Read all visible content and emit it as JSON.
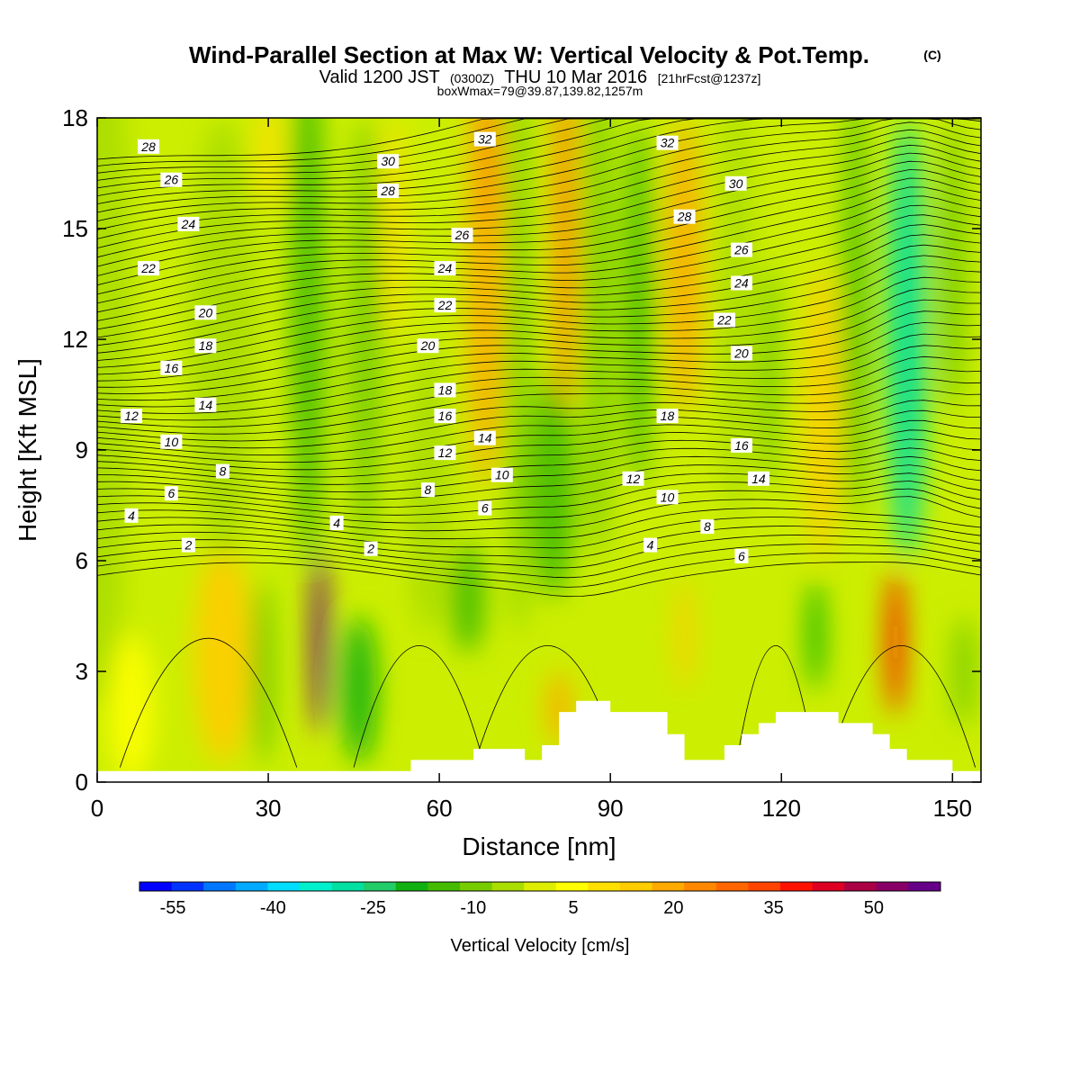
{
  "header": {
    "title": "Wind-Parallel Section at Max W: Vertical Velocity & Pot.Temp.",
    "copyright": "(C)",
    "valid_prefix": "Valid 1200 JST",
    "valid_utc": "(0300Z)",
    "valid_date": "THU 10 Mar 2016",
    "forecast": "[21hrFcst@1237z]",
    "boxwmax": "boxWmax=79@39.87,139.82,1257m"
  },
  "chart_data": {
    "type": "heatmap",
    "title": "Wind-Parallel Section at Max W: Vertical Velocity & Pot.Temp.",
    "xlabel": "Distance [nm]",
    "ylabel": "Height [Kft MSL]",
    "xlim": [
      0,
      155
    ],
    "ylim": [
      0,
      18
    ],
    "xticks": [
      0,
      30,
      60,
      90,
      120,
      150
    ],
    "yticks": [
      0,
      3,
      6,
      9,
      12,
      15,
      18
    ],
    "colorbar": {
      "label": "Vertical Velocity [cm/s]",
      "ticks": [
        -55,
        -40,
        -25,
        -10,
        5,
        20,
        35,
        50
      ],
      "min": -60,
      "max": 60,
      "colors": [
        "#0000ff",
        "#0033ff",
        "#0077ff",
        "#00aaff",
        "#00ddff",
        "#00f0cc",
        "#00e0a0",
        "#22cc66",
        "#11b011",
        "#44bb00",
        "#77cc00",
        "#aadd00",
        "#ddee00",
        "#ffff00",
        "#ffe000",
        "#ffcc00",
        "#ffaa00",
        "#ff8800",
        "#ff6600",
        "#ff4400",
        "#ff1100",
        "#dd0022",
        "#aa0044",
        "#880066",
        "#660088"
      ]
    },
    "vertical_velocity_cells": [
      {
        "x_center": 0,
        "w_nm": 12,
        "y_center": 12,
        "h_kft": 20,
        "w_cms": -6
      },
      {
        "x_center": 6,
        "w_nm": 8,
        "y_center": 2,
        "h_kft": 4,
        "w_cms": 4
      },
      {
        "x_center": 22,
        "w_nm": 10,
        "y_center": 3.5,
        "h_kft": 6,
        "w_cms": 12
      },
      {
        "x_center": 22,
        "w_nm": 12,
        "y_center": 12,
        "h_kft": 12,
        "w_cms": -5
      },
      {
        "x_center": 29,
        "w_nm": 3,
        "y_center": 3,
        "h_kft": 5,
        "w_cms": -16
      },
      {
        "x_center": 30,
        "w_nm": 4,
        "y_center": 17,
        "h_kft": 3,
        "w_cms": 10
      },
      {
        "x_center": 37,
        "w_nm": 6,
        "y_center": 13,
        "h_kft": 14,
        "w_cms": -16
      },
      {
        "x_center": 39,
        "w_nm": 3,
        "y_center": 3.8,
        "h_kft": 5,
        "w_cms": 58
      },
      {
        "x_center": 46,
        "w_nm": 6,
        "y_center": 2.5,
        "h_kft": 4,
        "w_cms": -18
      },
      {
        "x_center": 47,
        "w_nm": 6,
        "y_center": 12,
        "h_kft": 12,
        "w_cms": -8
      },
      {
        "x_center": 52,
        "w_nm": 4,
        "y_center": 15,
        "h_kft": 6,
        "w_cms": 8
      },
      {
        "x_center": 58,
        "w_nm": 8,
        "y_center": 8,
        "h_kft": 8,
        "w_cms": -6
      },
      {
        "x_center": 65,
        "w_nm": 6,
        "y_center": 5,
        "h_kft": 3,
        "w_cms": -16
      },
      {
        "x_center": 68,
        "w_nm": 6,
        "y_center": 14,
        "h_kft": 12,
        "w_cms": 18
      },
      {
        "x_center": 69,
        "w_nm": 3,
        "y_center": 17,
        "h_kft": 4,
        "w_cms": 26
      },
      {
        "x_center": 74,
        "w_nm": 4,
        "y_center": 12,
        "h_kft": 16,
        "w_cms": -10
      },
      {
        "x_center": 80,
        "w_nm": 8,
        "y_center": 8,
        "h_kft": 6,
        "w_cms": -14
      },
      {
        "x_center": 81,
        "w_nm": 4,
        "y_center": 2,
        "h_kft": 2,
        "w_cms": 20
      },
      {
        "x_center": 82,
        "w_nm": 4,
        "y_center": 15,
        "h_kft": 10,
        "w_cms": 26
      },
      {
        "x_center": 88,
        "w_nm": 5,
        "y_center": 13,
        "h_kft": 14,
        "w_cms": -8
      },
      {
        "x_center": 95,
        "w_nm": 5,
        "y_center": 13,
        "h_kft": 10,
        "w_cms": -16
      },
      {
        "x_center": 103,
        "w_nm": 6,
        "y_center": 14,
        "h_kft": 8,
        "w_cms": 20
      },
      {
        "x_center": 103,
        "w_nm": 3,
        "y_center": 4,
        "h_kft": 3,
        "w_cms": 12
      },
      {
        "x_center": 112,
        "w_nm": 6,
        "y_center": 13,
        "h_kft": 12,
        "w_cms": -6
      },
      {
        "x_center": 118,
        "w_nm": 4,
        "y_center": 11,
        "h_kft": 6,
        "w_cms": -12
      },
      {
        "x_center": 126,
        "w_nm": 3,
        "y_center": 4,
        "h_kft": 3,
        "w_cms": -20
      },
      {
        "x_center": 127,
        "w_nm": 6,
        "y_center": 10,
        "h_kft": 8,
        "w_cms": 14
      },
      {
        "x_center": 133,
        "w_nm": 4,
        "y_center": 13,
        "h_kft": 12,
        "w_cms": -14
      },
      {
        "x_center": 140,
        "w_nm": 3,
        "y_center": 3.8,
        "h_kft": 4,
        "w_cms": 36
      },
      {
        "x_center": 142,
        "w_nm": 7,
        "y_center": 12,
        "h_kft": 12,
        "w_cms": -28
      },
      {
        "x_center": 150,
        "w_nm": 5,
        "y_center": 14,
        "h_kft": 8,
        "w_cms": -8
      },
      {
        "x_center": 152,
        "w_nm": 4,
        "y_center": 3,
        "h_kft": 3,
        "w_cms": -12
      }
    ],
    "terrain": [
      [
        0,
        0.3
      ],
      [
        55,
        0.3
      ],
      [
        55,
        0.6
      ],
      [
        66,
        0.6
      ],
      [
        66,
        0.9
      ],
      [
        75,
        0.9
      ],
      [
        75,
        0.6
      ],
      [
        78,
        0.6
      ],
      [
        78,
        1.0
      ],
      [
        81,
        1.0
      ],
      [
        81,
        1.9
      ],
      [
        84,
        1.9
      ],
      [
        84,
        2.2
      ],
      [
        90,
        2.2
      ],
      [
        90,
        1.9
      ],
      [
        100,
        1.9
      ],
      [
        100,
        1.3
      ],
      [
        103,
        1.3
      ],
      [
        103,
        0.6
      ],
      [
        110,
        0.6
      ],
      [
        110,
        1.0
      ],
      [
        113,
        1.0
      ],
      [
        113,
        1.3
      ],
      [
        116,
        1.3
      ],
      [
        116,
        1.6
      ],
      [
        119,
        1.6
      ],
      [
        119,
        1.9
      ],
      [
        130,
        1.9
      ],
      [
        130,
        1.6
      ],
      [
        136,
        1.6
      ],
      [
        136,
        1.3
      ],
      [
        139,
        1.3
      ],
      [
        139,
        0.9
      ],
      [
        142,
        0.9
      ],
      [
        142,
        0.6
      ],
      [
        150,
        0.6
      ],
      [
        150,
        0.3
      ],
      [
        155,
        0.3
      ]
    ],
    "potential_temperature_labels": [
      {
        "value": "28",
        "x": 9,
        "y": 17.2
      },
      {
        "value": "26",
        "x": 13,
        "y": 16.3
      },
      {
        "value": "24",
        "x": 16,
        "y": 15.1
      },
      {
        "value": "22",
        "x": 9,
        "y": 13.9
      },
      {
        "value": "20",
        "x": 19,
        "y": 12.7
      },
      {
        "value": "18",
        "x": 19,
        "y": 11.8
      },
      {
        "value": "16",
        "x": 13,
        "y": 11.2
      },
      {
        "value": "14",
        "x": 19,
        "y": 10.2
      },
      {
        "value": "12",
        "x": 6,
        "y": 9.9
      },
      {
        "value": "10",
        "x": 13,
        "y": 9.2
      },
      {
        "value": "8",
        "x": 22,
        "y": 8.4
      },
      {
        "value": "6",
        "x": 13,
        "y": 7.8
      },
      {
        "value": "4",
        "x": 6,
        "y": 7.2
      },
      {
        "value": "2",
        "x": 16,
        "y": 6.4
      },
      {
        "value": "30",
        "x": 51,
        "y": 16.8
      },
      {
        "value": "28",
        "x": 51,
        "y": 16.0
      },
      {
        "value": "26",
        "x": 64,
        "y": 14.8
      },
      {
        "value": "24",
        "x": 61,
        "y": 13.9
      },
      {
        "value": "22",
        "x": 61,
        "y": 12.9
      },
      {
        "value": "20",
        "x": 58,
        "y": 11.8
      },
      {
        "value": "18",
        "x": 61,
        "y": 10.6
      },
      {
        "value": "16",
        "x": 61,
        "y": 9.9
      },
      {
        "value": "14",
        "x": 68,
        "y": 9.3
      },
      {
        "value": "12",
        "x": 61,
        "y": 8.9
      },
      {
        "value": "10",
        "x": 71,
        "y": 8.3
      },
      {
        "value": "8",
        "x": 58,
        "y": 7.9
      },
      {
        "value": "6",
        "x": 68,
        "y": 7.4
      },
      {
        "value": "4",
        "x": 42,
        "y": 7.0
      },
      {
        "value": "2",
        "x": 48,
        "y": 6.3
      },
      {
        "value": "32",
        "x": 68,
        "y": 17.4
      },
      {
        "value": "32",
        "x": 100,
        "y": 17.3
      },
      {
        "value": "30",
        "x": 112,
        "y": 16.2
      },
      {
        "value": "28",
        "x": 103,
        "y": 15.3
      },
      {
        "value": "26",
        "x": 113,
        "y": 14.4
      },
      {
        "value": "24",
        "x": 113,
        "y": 13.5
      },
      {
        "value": "22",
        "x": 110,
        "y": 12.5
      },
      {
        "value": "20",
        "x": 113,
        "y": 11.6
      },
      {
        "value": "18",
        "x": 100,
        "y": 9.9
      },
      {
        "value": "16",
        "x": 113,
        "y": 9.1
      },
      {
        "value": "14",
        "x": 116,
        "y": 8.2
      },
      {
        "value": "12",
        "x": 94,
        "y": 8.2
      },
      {
        "value": "10",
        "x": 100,
        "y": 7.7
      },
      {
        "value": "8",
        "x": 107,
        "y": 6.9
      },
      {
        "value": "6",
        "x": 113,
        "y": 6.1
      },
      {
        "value": "4",
        "x": 97,
        "y": 6.4
      }
    ]
  }
}
